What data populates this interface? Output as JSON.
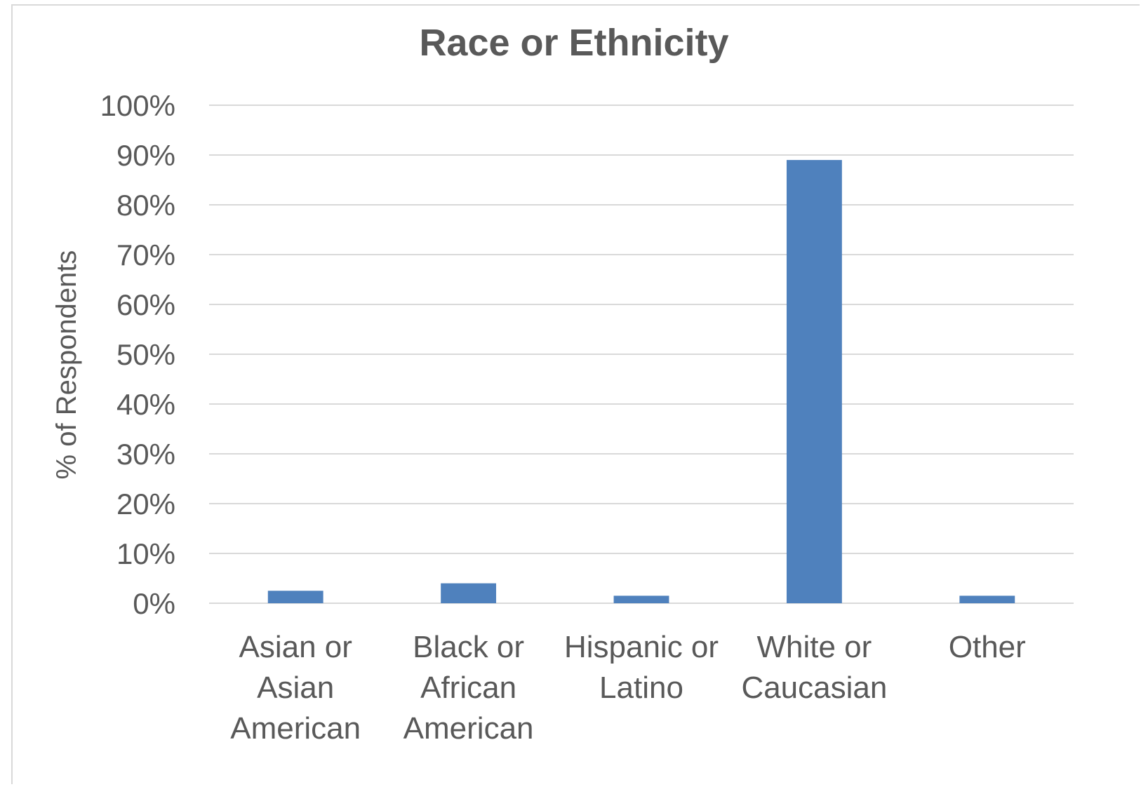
{
  "chart_data": {
    "type": "bar",
    "title": "Race or Ethnicity",
    "xlabel": "",
    "ylabel": "% of Respondents",
    "categories": [
      "Asian or Asian American",
      "Black or African American",
      "Hispanic or Latino",
      "White or Caucasian",
      "Other"
    ],
    "category_lines": [
      [
        "Asian or",
        "Asian",
        "American"
      ],
      [
        "Black or",
        "African",
        "American"
      ],
      [
        "Hispanic or",
        "Latino"
      ],
      [
        "White or",
        "Caucasian"
      ],
      [
        "Other"
      ]
    ],
    "values": [
      2.5,
      4,
      1.5,
      89,
      1.5
    ],
    "ylim": [
      0,
      100
    ],
    "yticks": [
      0,
      10,
      20,
      30,
      40,
      50,
      60,
      70,
      80,
      90,
      100
    ],
    "ytick_labels": [
      "0%",
      "10%",
      "20%",
      "30%",
      "40%",
      "50%",
      "60%",
      "70%",
      "80%",
      "90%",
      "100%"
    ],
    "grid": true,
    "legend": "none",
    "colors": {
      "bar": "#4f81bd",
      "grid": "#d9d9d9",
      "text": "#595959"
    }
  }
}
